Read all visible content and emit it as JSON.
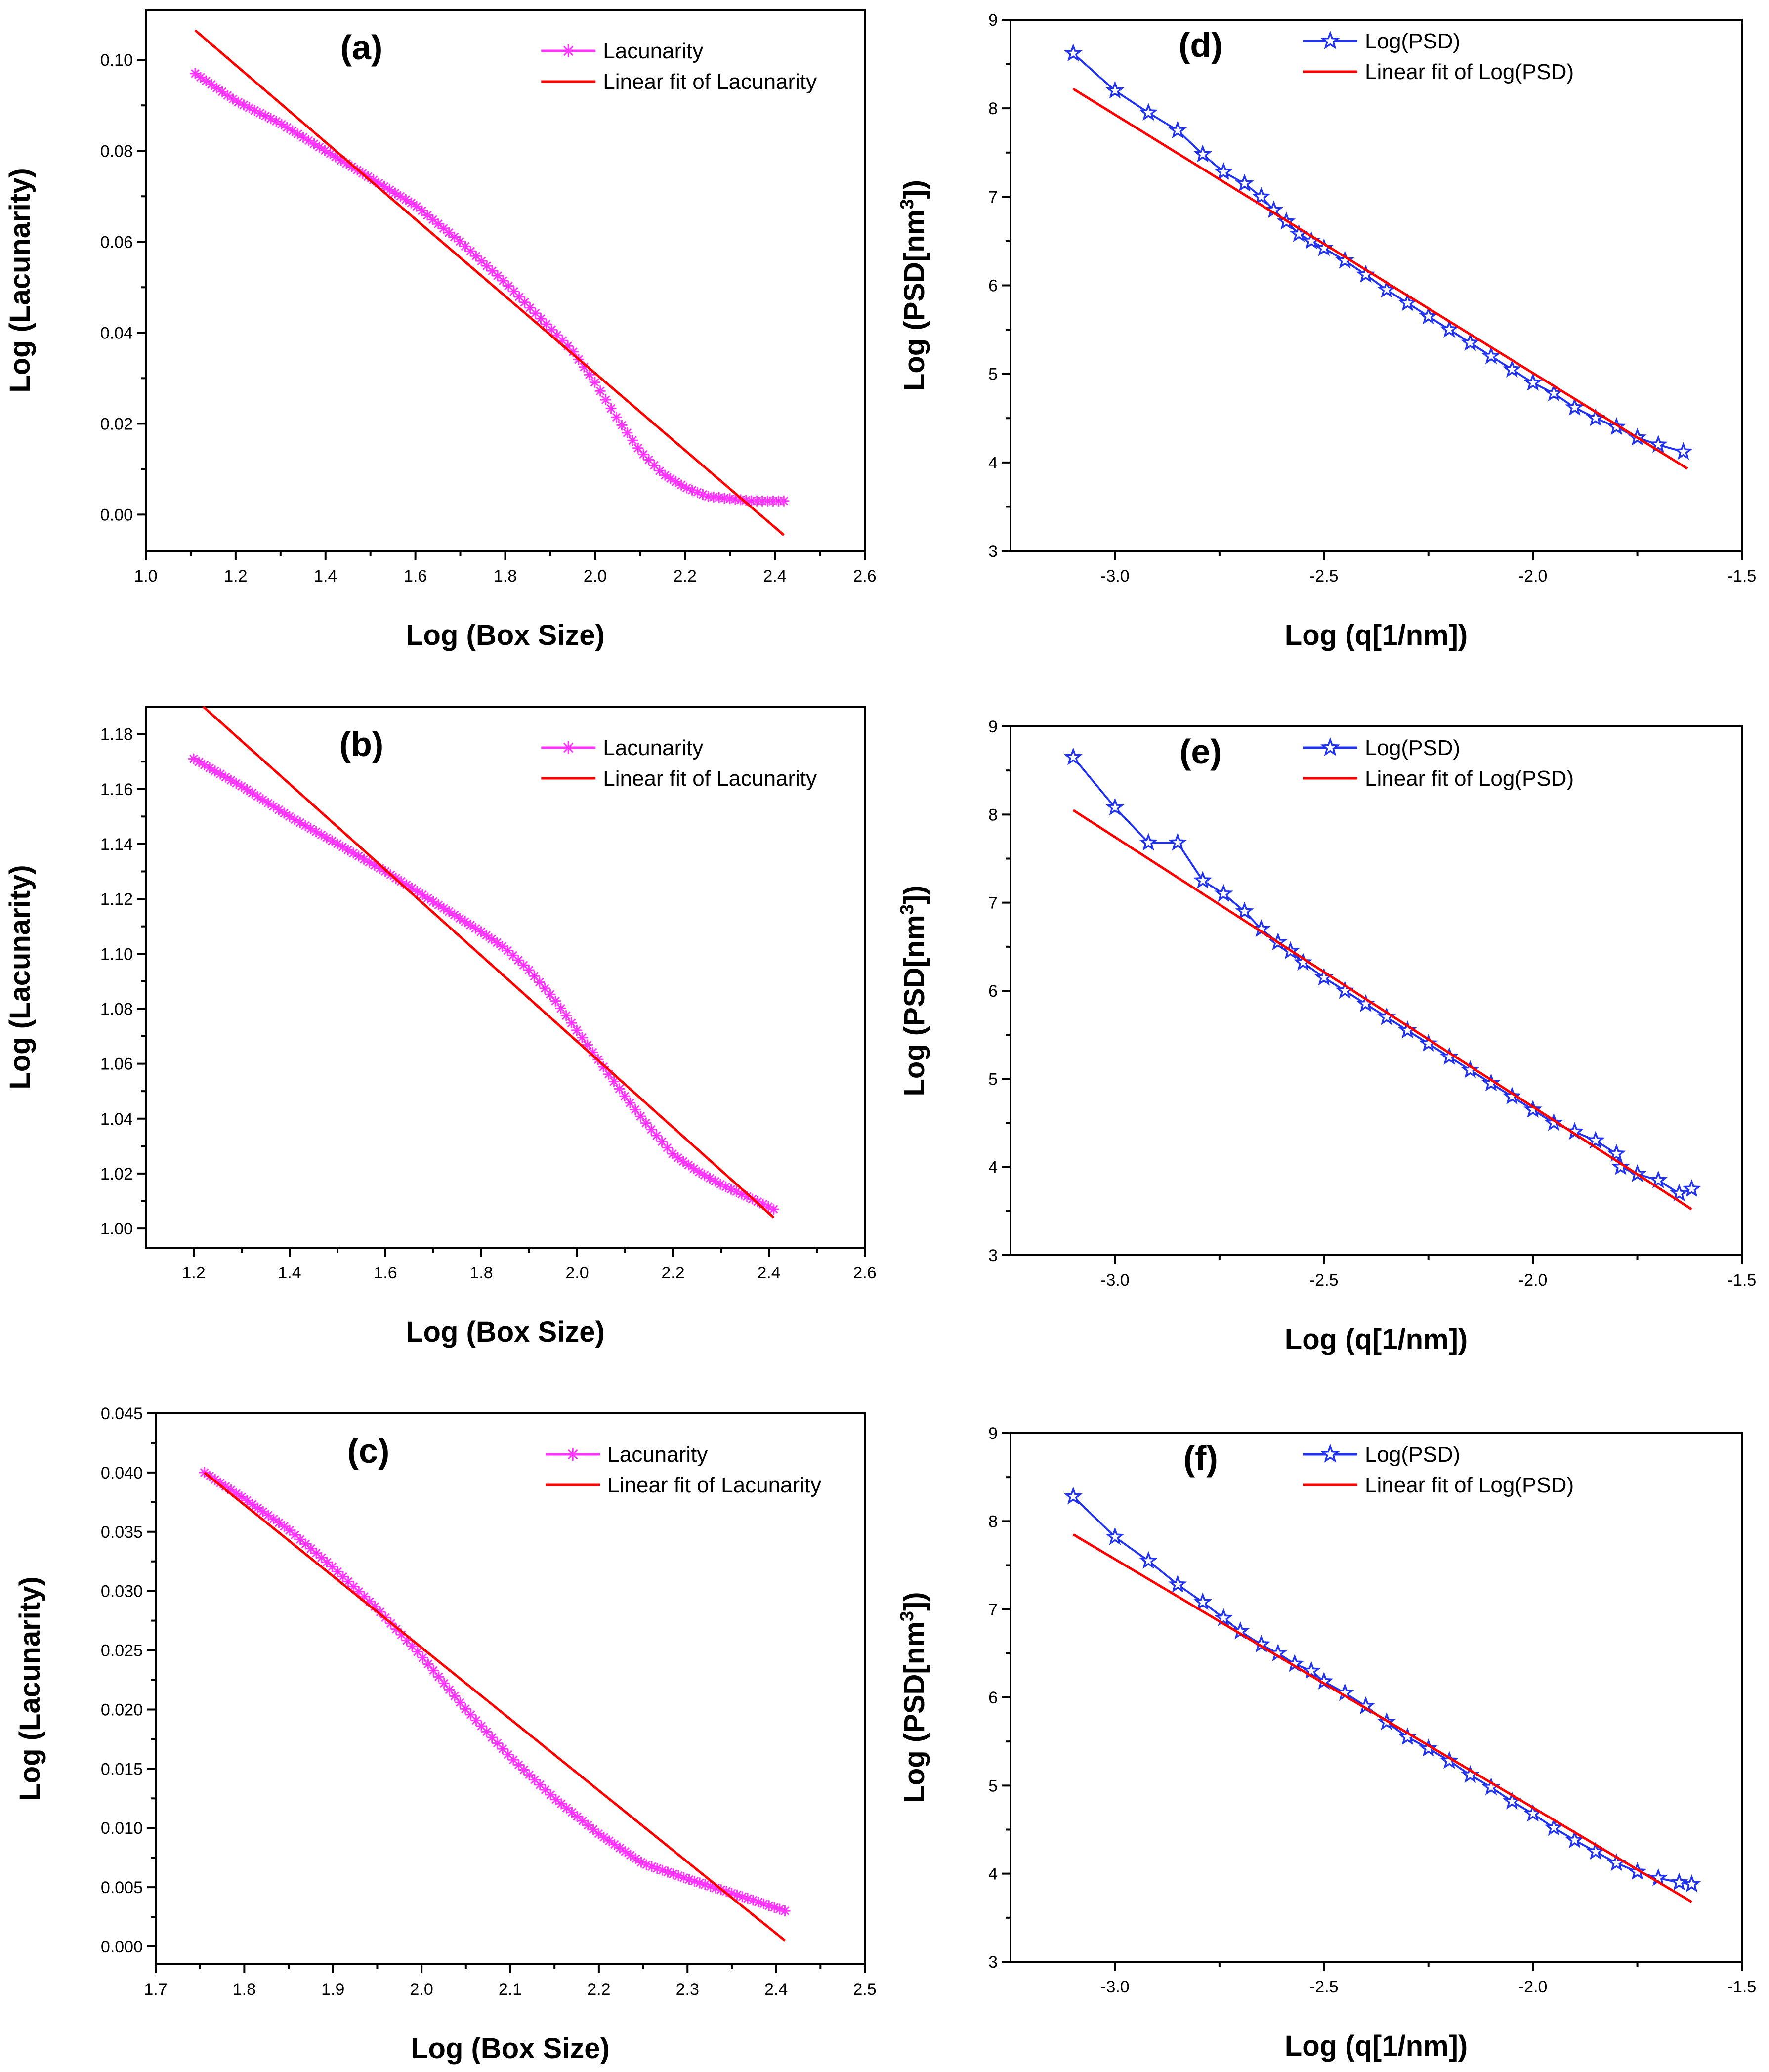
{
  "colors": {
    "lacunarity": "#ff33ff",
    "psd": "#2233ee",
    "psd_marker_fill": "#ffffff",
    "fit": "#ff0000",
    "axis": "#000000"
  },
  "chart_data": [
    {
      "id": "a",
      "type": "line",
      "panel_label": "(a)",
      "xlabel": "Log (Box Size)",
      "ylabel": "Log (Lacunarity)",
      "xlim": [
        1.0,
        2.6
      ],
      "ylim": [
        -0.008,
        0.111
      ],
      "xticks": [
        "1.0",
        "1.2",
        "1.4",
        "1.6",
        "1.8",
        "2.0",
        "2.2",
        "2.4",
        "2.6"
      ],
      "yticks": [
        "0.00",
        "0.02",
        "0.04",
        "0.06",
        "0.08",
        "0.10"
      ],
      "legend": [
        "Lacunarity",
        "Linear fit of Lacunarity"
      ],
      "series": [
        {
          "name": "Lacunarity",
          "marker": "asterisk",
          "color": "#ff33ff",
          "x": [
            1.11,
            1.2,
            1.3,
            1.4,
            1.5,
            1.6,
            1.7,
            1.8,
            1.9,
            1.95,
            2.0,
            2.05,
            2.1,
            2.15,
            2.2,
            2.25,
            2.3,
            2.35,
            2.42
          ],
          "y": [
            0.097,
            0.091,
            0.086,
            0.08,
            0.074,
            0.068,
            0.06,
            0.051,
            0.041,
            0.036,
            0.029,
            0.021,
            0.014,
            0.009,
            0.006,
            0.004,
            0.0035,
            0.003,
            0.003
          ]
        },
        {
          "name": "Linear fit of Lacunarity",
          "color": "#ff0000",
          "x": [
            1.11,
            2.42
          ],
          "y": [
            0.1065,
            -0.0045
          ]
        }
      ]
    },
    {
      "id": "b",
      "type": "line",
      "panel_label": "(b)",
      "xlabel": "Log (Box Size)",
      "ylabel": "Log (Lacunarity)",
      "xlim": [
        1.1,
        2.6
      ],
      "ylim": [
        0.993,
        1.19
      ],
      "xticks": [
        "1.2",
        "1.4",
        "1.6",
        "1.8",
        "2.0",
        "2.2",
        "2.4",
        "2.6"
      ],
      "yticks": [
        "1.00",
        "1.02",
        "1.04",
        "1.06",
        "1.08",
        "1.10",
        "1.12",
        "1.14",
        "1.16",
        "1.18"
      ],
      "legend": [
        "Lacunarity",
        "Linear fit of Lacunarity"
      ],
      "series": [
        {
          "name": "Lacunarity",
          "marker": "asterisk",
          "color": "#ff33ff",
          "x": [
            1.2,
            1.3,
            1.4,
            1.5,
            1.6,
            1.7,
            1.8,
            1.85,
            1.9,
            1.95,
            2.0,
            2.05,
            2.1,
            2.15,
            2.2,
            2.25,
            2.3,
            2.35,
            2.41
          ],
          "y": [
            1.171,
            1.161,
            1.15,
            1.14,
            1.13,
            1.119,
            1.108,
            1.102,
            1.094,
            1.084,
            1.072,
            1.06,
            1.048,
            1.037,
            1.027,
            1.021,
            1.016,
            1.012,
            1.007
          ]
        },
        {
          "name": "Linear fit of Lacunarity",
          "color": "#ff0000",
          "x": [
            1.22,
            2.41
          ],
          "y": [
            1.19,
            1.004
          ]
        }
      ]
    },
    {
      "id": "c",
      "type": "line",
      "panel_label": "(c)",
      "xlabel": "Log (Box Size)",
      "ylabel": "Log (Lacunarity)",
      "xlim": [
        1.7,
        2.5
      ],
      "ylim": [
        -0.0015,
        0.045
      ],
      "xticks": [
        "1.7",
        "1.8",
        "1.9",
        "2.0",
        "2.1",
        "2.2",
        "2.3",
        "2.4",
        "2.5"
      ],
      "yticks": [
        "0.000",
        "0.005",
        "0.010",
        "0.015",
        "0.020",
        "0.025",
        "0.030",
        "0.035",
        "0.040",
        "0.045"
      ],
      "legend": [
        "Lacunarity",
        "Linear fit of Lacunarity"
      ],
      "series": [
        {
          "name": "Lacunarity",
          "marker": "asterisk",
          "color": "#ff33ff",
          "x": [
            1.755,
            1.8,
            1.85,
            1.9,
            1.95,
            2.0,
            2.05,
            2.1,
            2.15,
            2.2,
            2.25,
            2.3,
            2.35,
            2.41
          ],
          "y": [
            0.04,
            0.0378,
            0.0352,
            0.032,
            0.0285,
            0.0245,
            0.02,
            0.016,
            0.0125,
            0.0095,
            0.007,
            0.0057,
            0.0045,
            0.003
          ]
        },
        {
          "name": "Linear fit of Lacunarity",
          "color": "#ff0000",
          "x": [
            1.755,
            2.41
          ],
          "y": [
            0.04,
            0.0005
          ]
        }
      ]
    },
    {
      "id": "d",
      "type": "line",
      "panel_label": "(d)",
      "xlabel": "Log (q[1/nm])",
      "ylabel": "Log (PSD[nm3])",
      "xlim": [
        -3.25,
        -1.5
      ],
      "ylim": [
        3.0,
        9.0
      ],
      "xticks": [
        "-3.0",
        "-2.5",
        "-2.0",
        "-1.5"
      ],
      "yticks": [
        "3",
        "4",
        "5",
        "6",
        "7",
        "8",
        "9"
      ],
      "legend": [
        "Log(PSD)",
        "Linear fit of Log(PSD)"
      ],
      "series": [
        {
          "name": "Log(PSD)",
          "marker": "star",
          "color": "#2233ee",
          "x": [
            -3.1,
            -3.0,
            -2.92,
            -2.85,
            -2.79,
            -2.74,
            -2.69,
            -2.65,
            -2.62,
            -2.59,
            -2.56,
            -2.53,
            -2.5,
            -2.45,
            -2.4,
            -2.35,
            -2.3,
            -2.25,
            -2.2,
            -2.15,
            -2.1,
            -2.05,
            -2.0,
            -1.95,
            -1.9,
            -1.85,
            -1.8,
            -1.75,
            -1.7,
            -1.64
          ],
          "y": [
            8.62,
            8.2,
            7.95,
            7.75,
            7.48,
            7.28,
            7.15,
            7.0,
            6.85,
            6.72,
            6.58,
            6.5,
            6.42,
            6.28,
            6.12,
            5.95,
            5.8,
            5.65,
            5.5,
            5.35,
            5.2,
            5.05,
            4.9,
            4.78,
            4.62,
            4.5,
            4.4,
            4.28,
            4.2,
            4.12
          ]
        },
        {
          "name": "Linear fit of Log(PSD)",
          "color": "#ff0000",
          "x": [
            -3.1,
            -1.63
          ],
          "y": [
            8.22,
            3.93
          ]
        }
      ]
    },
    {
      "id": "e",
      "type": "line",
      "panel_label": "(e)",
      "xlabel": "Log (q[1/nm])",
      "ylabel": "Log (PSD[nm3])",
      "xlim": [
        -3.25,
        -1.5
      ],
      "ylim": [
        3.0,
        9.0
      ],
      "xticks": [
        "-3.0",
        "-2.5",
        "-2.0",
        "-1.5"
      ],
      "yticks": [
        "3",
        "4",
        "5",
        "6",
        "7",
        "8",
        "9"
      ],
      "legend": [
        "Log(PSD)",
        "Linear fit of Log(PSD)"
      ],
      "series": [
        {
          "name": "Log(PSD)",
          "marker": "star",
          "color": "#2233ee",
          "x": [
            -3.1,
            -3.0,
            -2.92,
            -2.85,
            -2.79,
            -2.74,
            -2.69,
            -2.65,
            -2.61,
            -2.58,
            -2.55,
            -2.5,
            -2.45,
            -2.4,
            -2.35,
            -2.3,
            -2.25,
            -2.2,
            -2.15,
            -2.1,
            -2.05,
            -2.0,
            -1.95,
            -1.9,
            -1.85,
            -1.8,
            -1.79,
            -1.75,
            -1.7,
            -1.65,
            -1.62
          ],
          "y": [
            8.65,
            8.08,
            7.68,
            7.68,
            7.25,
            7.1,
            6.9,
            6.7,
            6.55,
            6.45,
            6.32,
            6.15,
            6.0,
            5.85,
            5.7,
            5.55,
            5.4,
            5.25,
            5.1,
            4.95,
            4.8,
            4.65,
            4.5,
            4.4,
            4.3,
            4.15,
            4.0,
            3.92,
            3.85,
            3.7,
            3.75
          ]
        },
        {
          "name": "Linear fit of Log(PSD)",
          "color": "#ff0000",
          "x": [
            -3.1,
            -1.62
          ],
          "y": [
            8.05,
            3.52
          ]
        }
      ]
    },
    {
      "id": "f",
      "type": "line",
      "panel_label": "(f)",
      "xlabel": "Log (q[1/nm])",
      "ylabel": "Log (PSD[nm3])",
      "xlim": [
        -3.25,
        -1.5
      ],
      "ylim": [
        3.0,
        9.0
      ],
      "xticks": [
        "-3.0",
        "-2.5",
        "-2.0",
        "-1.5"
      ],
      "yticks": [
        "3",
        "4",
        "5",
        "6",
        "7",
        "8",
        "9"
      ],
      "legend": [
        "Log(PSD)",
        "Linear fit of Log(PSD)"
      ],
      "series": [
        {
          "name": "Log(PSD)",
          "marker": "star",
          "color": "#2233ee",
          "x": [
            -3.1,
            -3.0,
            -2.92,
            -2.85,
            -2.79,
            -2.74,
            -2.7,
            -2.65,
            -2.61,
            -2.57,
            -2.53,
            -2.5,
            -2.45,
            -2.4,
            -2.35,
            -2.3,
            -2.25,
            -2.2,
            -2.15,
            -2.1,
            -2.05,
            -2.0,
            -1.95,
            -1.9,
            -1.85,
            -1.8,
            -1.75,
            -1.7,
            -1.65,
            -1.62
          ],
          "y": [
            8.28,
            7.82,
            7.55,
            7.28,
            7.08,
            6.9,
            6.75,
            6.6,
            6.5,
            6.38,
            6.3,
            6.18,
            6.05,
            5.9,
            5.72,
            5.55,
            5.42,
            5.28,
            5.12,
            4.98,
            4.82,
            4.68,
            4.52,
            4.38,
            4.25,
            4.12,
            4.02,
            3.95,
            3.9,
            3.88
          ]
        },
        {
          "name": "Linear fit of Log(PSD)",
          "color": "#ff0000",
          "x": [
            -3.1,
            -1.62
          ],
          "y": [
            7.85,
            3.68
          ]
        }
      ]
    }
  ]
}
